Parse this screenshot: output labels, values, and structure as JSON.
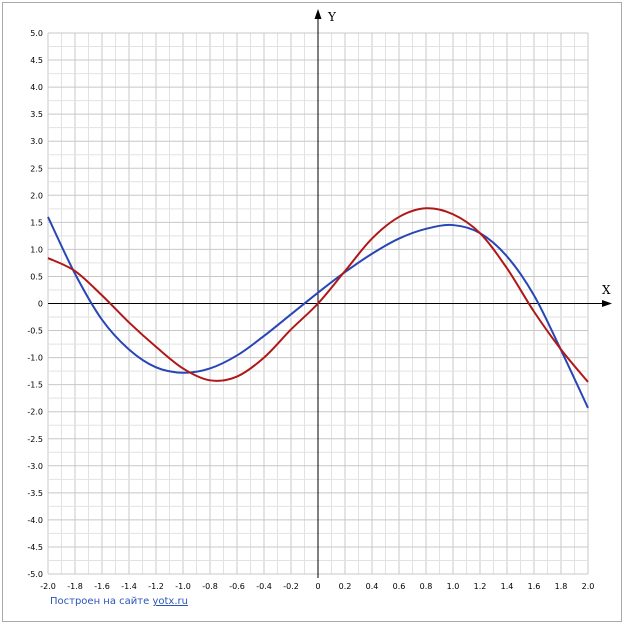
{
  "chart_data": {
    "type": "line",
    "title": "",
    "xlabel": "X",
    "ylabel": "Y",
    "xlim": [
      -2.0,
      2.0
    ],
    "ylim": [
      -5.0,
      5.0
    ],
    "grid": true,
    "x_ticks": [
      "-2.0",
      "-1.8",
      "-1.6",
      "-1.4",
      "-1.2",
      "-1.0",
      "-0.8",
      "-0.6",
      "-0.4",
      "-0.2",
      "0",
      "0.2",
      "0.4",
      "0.6",
      "0.8",
      "1.0",
      "1.2",
      "1.4",
      "1.6",
      "1.8",
      "2.0"
    ],
    "y_ticks": [
      "5.0",
      "4.5",
      "4.0",
      "3.5",
      "3.0",
      "2.5",
      "2.0",
      "1.5",
      "1.0",
      "0.5",
      "0",
      "-0.5",
      "-1.0",
      "-1.5",
      "-2.0",
      "-2.5",
      "-3.0",
      "-3.5",
      "-4.0",
      "-4.5",
      "-5.0"
    ],
    "series": [
      {
        "color": "#2846b4",
        "x": [
          -2.0,
          -1.8,
          -1.6,
          -1.4,
          -1.2,
          -1.0,
          -0.8,
          -0.6,
          -0.4,
          -0.2,
          0.0,
          0.2,
          0.4,
          0.6,
          0.8,
          1.0,
          1.2,
          1.4,
          1.6,
          1.8,
          2.0
        ],
        "y": [
          1.6,
          0.55,
          -0.3,
          -0.85,
          -1.18,
          -1.28,
          -1.2,
          -0.96,
          -0.6,
          -0.2,
          0.2,
          0.58,
          0.92,
          1.2,
          1.38,
          1.45,
          1.3,
          0.87,
          0.15,
          -0.86,
          -1.93
        ]
      },
      {
        "color": "#b01818",
        "x": [
          -2.0,
          -1.8,
          -1.6,
          -1.4,
          -1.2,
          -1.0,
          -0.8,
          -0.6,
          -0.4,
          -0.2,
          0.0,
          0.2,
          0.4,
          0.6,
          0.8,
          1.0,
          1.2,
          1.4,
          1.6,
          1.8,
          2.0
        ],
        "y": [
          0.84,
          0.6,
          0.15,
          -0.35,
          -0.8,
          -1.2,
          -1.42,
          -1.35,
          -1.0,
          -0.48,
          0.0,
          0.6,
          1.2,
          1.6,
          1.76,
          1.65,
          1.3,
          0.65,
          -0.15,
          -0.85,
          -1.45
        ]
      }
    ]
  },
  "credit": {
    "text": "Построен на сайте",
    "link": "yotx.ru"
  }
}
